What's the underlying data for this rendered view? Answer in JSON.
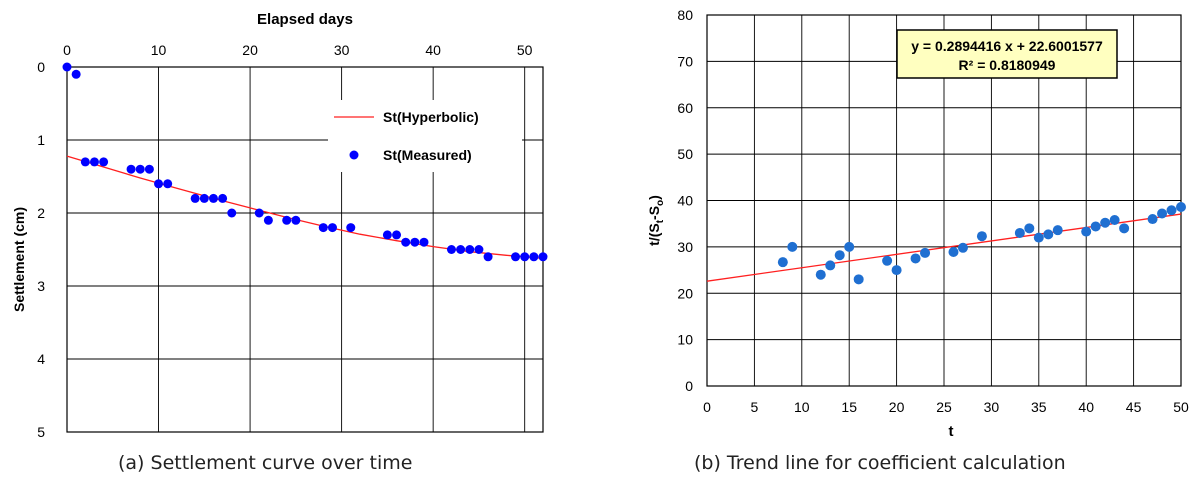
{
  "captions": {
    "a": "(a) Settlement curve over time",
    "b": "(b) Trend line for coefficient calculation"
  },
  "colors": {
    "curve": "#ff2020",
    "measured_a": "#0000ff",
    "measured_b": "#1f6fd1",
    "trend": "#ff2020",
    "equation_bg": "#ffffc0"
  },
  "chart_data": [
    {
      "id": "a",
      "type": "scatter",
      "title": "",
      "xlabel": "Elapsed days",
      "ylabel": "Settlement (cm)",
      "x_axis_position": "top",
      "y_inverted": true,
      "xlim": [
        0,
        52
      ],
      "ylim": [
        0,
        5
      ],
      "xticks": [
        0,
        10,
        20,
        30,
        40,
        50
      ],
      "yticks": [
        0,
        1,
        2,
        3,
        4,
        5
      ],
      "grid": true,
      "legend": "top-right",
      "series": [
        {
          "name": "St(Hyperbolic)",
          "kind": "line",
          "x": [
            0,
            4,
            8,
            12,
            16,
            20,
            24,
            28,
            32,
            36,
            40,
            44,
            48,
            52
          ],
          "y": [
            1.22,
            1.37,
            1.52,
            1.66,
            1.8,
            1.93,
            2.06,
            2.18,
            2.29,
            2.38,
            2.46,
            2.53,
            2.58,
            2.62
          ]
        },
        {
          "name": "St(Measured)",
          "kind": "points",
          "x": [
            0,
            1,
            2,
            3,
            4,
            7,
            8,
            9,
            10,
            11,
            14,
            15,
            16,
            17,
            18,
            21,
            22,
            24,
            25,
            28,
            29,
            31,
            35,
            36,
            37,
            38,
            39,
            42,
            43,
            44,
            45,
            46,
            49,
            50,
            51,
            52
          ],
          "y": [
            0,
            0.1,
            1.3,
            1.3,
            1.3,
            1.4,
            1.4,
            1.4,
            1.6,
            1.6,
            1.8,
            1.8,
            1.8,
            1.8,
            2.0,
            2.0,
            2.1,
            2.1,
            2.1,
            2.2,
            2.2,
            2.2,
            2.3,
            2.3,
            2.4,
            2.4,
            2.4,
            2.5,
            2.5,
            2.5,
            2.5,
            2.6,
            2.6,
            2.6,
            2.6,
            2.6
          ]
        }
      ]
    },
    {
      "id": "b",
      "type": "scatter",
      "title": "",
      "xlabel": "t",
      "ylabel_main": "t/(S",
      "ylabel_sub1": "t",
      "ylabel_mid": "-S",
      "ylabel_sub2": "o",
      "ylabel_end": ")",
      "xlim": [
        0,
        50
      ],
      "ylim": [
        0,
        80
      ],
      "xticks": [
        0,
        5,
        10,
        15,
        20,
        25,
        30,
        35,
        40,
        45,
        50
      ],
      "yticks": [
        0,
        10,
        20,
        30,
        40,
        50,
        60,
        70,
        80
      ],
      "grid": true,
      "annotation": {
        "line1": "y = 0.2894416 x + 22.6001577",
        "line2": "R² = 0.8180949",
        "position": "top-right"
      },
      "trendline": {
        "slope": 0.2894416,
        "intercept": 22.6001577
      },
      "series": [
        {
          "kind": "points",
          "x": [
            8,
            9,
            12,
            13,
            14,
            15,
            16,
            19,
            20,
            22,
            23,
            26,
            27,
            29,
            33,
            34,
            35,
            36,
            37,
            40,
            41,
            42,
            43,
            44,
            47,
            48,
            49,
            50
          ],
          "y": [
            26.7,
            30,
            24,
            26,
            28.2,
            30,
            23,
            27,
            25,
            27.5,
            28.7,
            28.9,
            29.8,
            32.3,
            33,
            34,
            32,
            32.7,
            33.6,
            33.3,
            34.4,
            35.2,
            35.8,
            34,
            36,
            37.2,
            37.9,
            38.6
          ]
        }
      ]
    }
  ]
}
